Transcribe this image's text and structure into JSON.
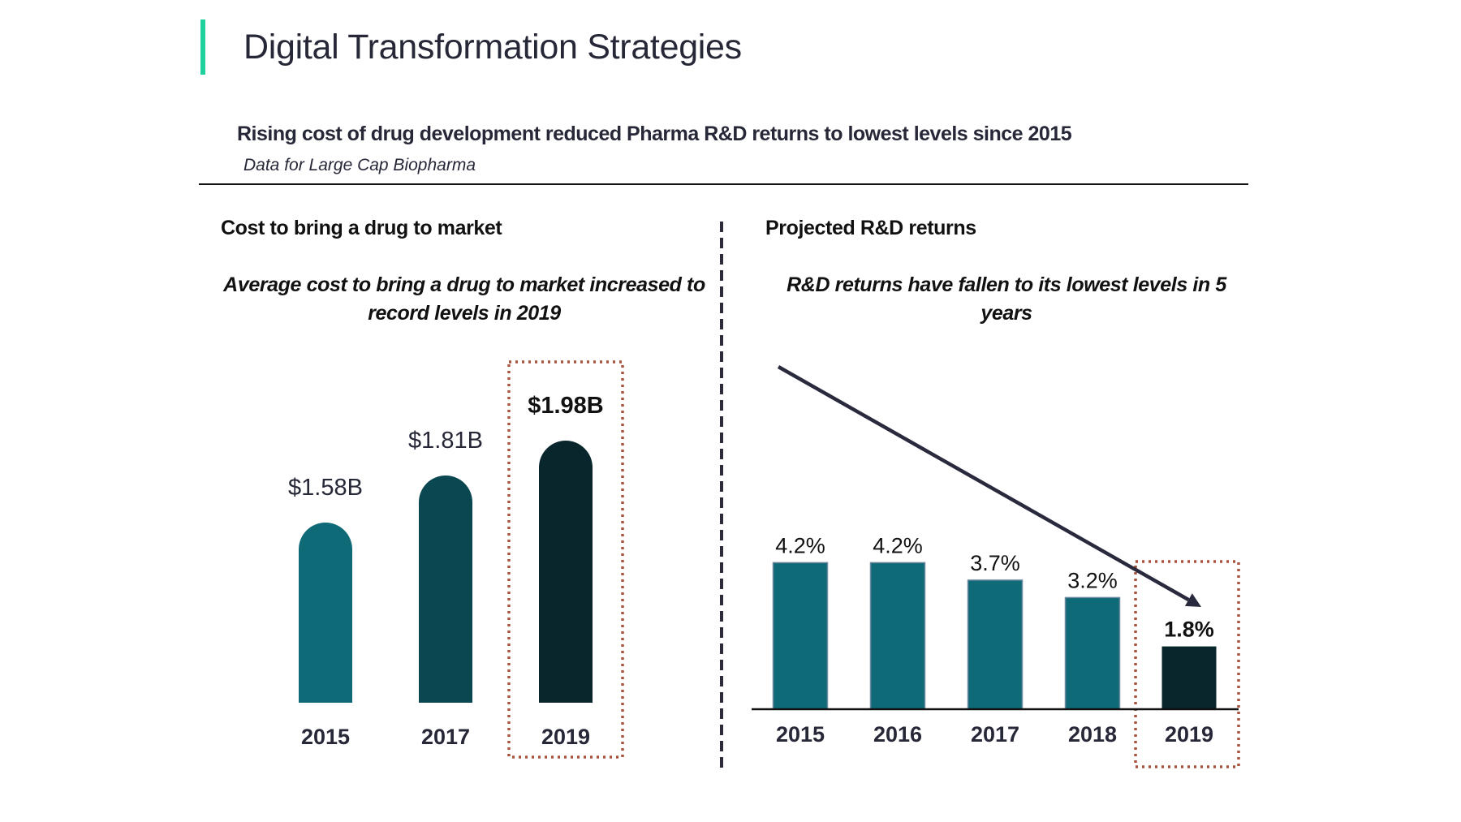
{
  "header": {
    "title": "Digital Transformation Strategies",
    "subtitle": "Rising cost of drug development reduced Pharma R&D returns to lowest levels since 2015",
    "note": "Data for Large Cap Biopharma",
    "accent_color": "#1fd19c"
  },
  "colors": {
    "highlight_box": "#a9533f",
    "trend_arrow": "#2a2a3e",
    "text": "#262838"
  },
  "chart_data": [
    {
      "type": "bar",
      "title": "Cost to bring a drug to market",
      "caption": "Average cost to bring a drug to market increased to record levels in 2019",
      "categories": [
        "2015",
        "2017",
        "2019"
      ],
      "values": [
        1.58,
        1.81,
        1.98
      ],
      "labels": [
        "$1.58B",
        "$1.81B",
        "$1.98B"
      ],
      "unit": "USD billions",
      "bar_colors": [
        "#0e6a77",
        "#0b4750",
        "#08262b"
      ],
      "highlight_category": "2019",
      "bar_shape": "rounded-top",
      "xlabel": "",
      "ylabel": "",
      "ylim": [
        0.7,
        2.0
      ],
      "grid": false,
      "axis_line": false
    },
    {
      "type": "bar",
      "title": "Projected R&D returns",
      "caption": "R&D returns have fallen to its lowest levels in 5 years",
      "categories": [
        "2015",
        "2016",
        "2017",
        "2018",
        "2019"
      ],
      "values": [
        4.2,
        4.2,
        3.7,
        3.2,
        1.8
      ],
      "labels": [
        "4.2%",
        "4.2%",
        "3.7%",
        "3.2%",
        "1.8%"
      ],
      "unit": "percent",
      "bar_colors": [
        "#0e6a77",
        "#0e6a77",
        "#0e6a77",
        "#0e6a77",
        "#08262b"
      ],
      "highlight_category": "2019",
      "annotation": "downward trend arrow from 2015 toward 2019",
      "xlabel": "",
      "ylabel": "",
      "ylim": [
        0,
        5
      ],
      "grid": false,
      "axis_line": true
    }
  ]
}
